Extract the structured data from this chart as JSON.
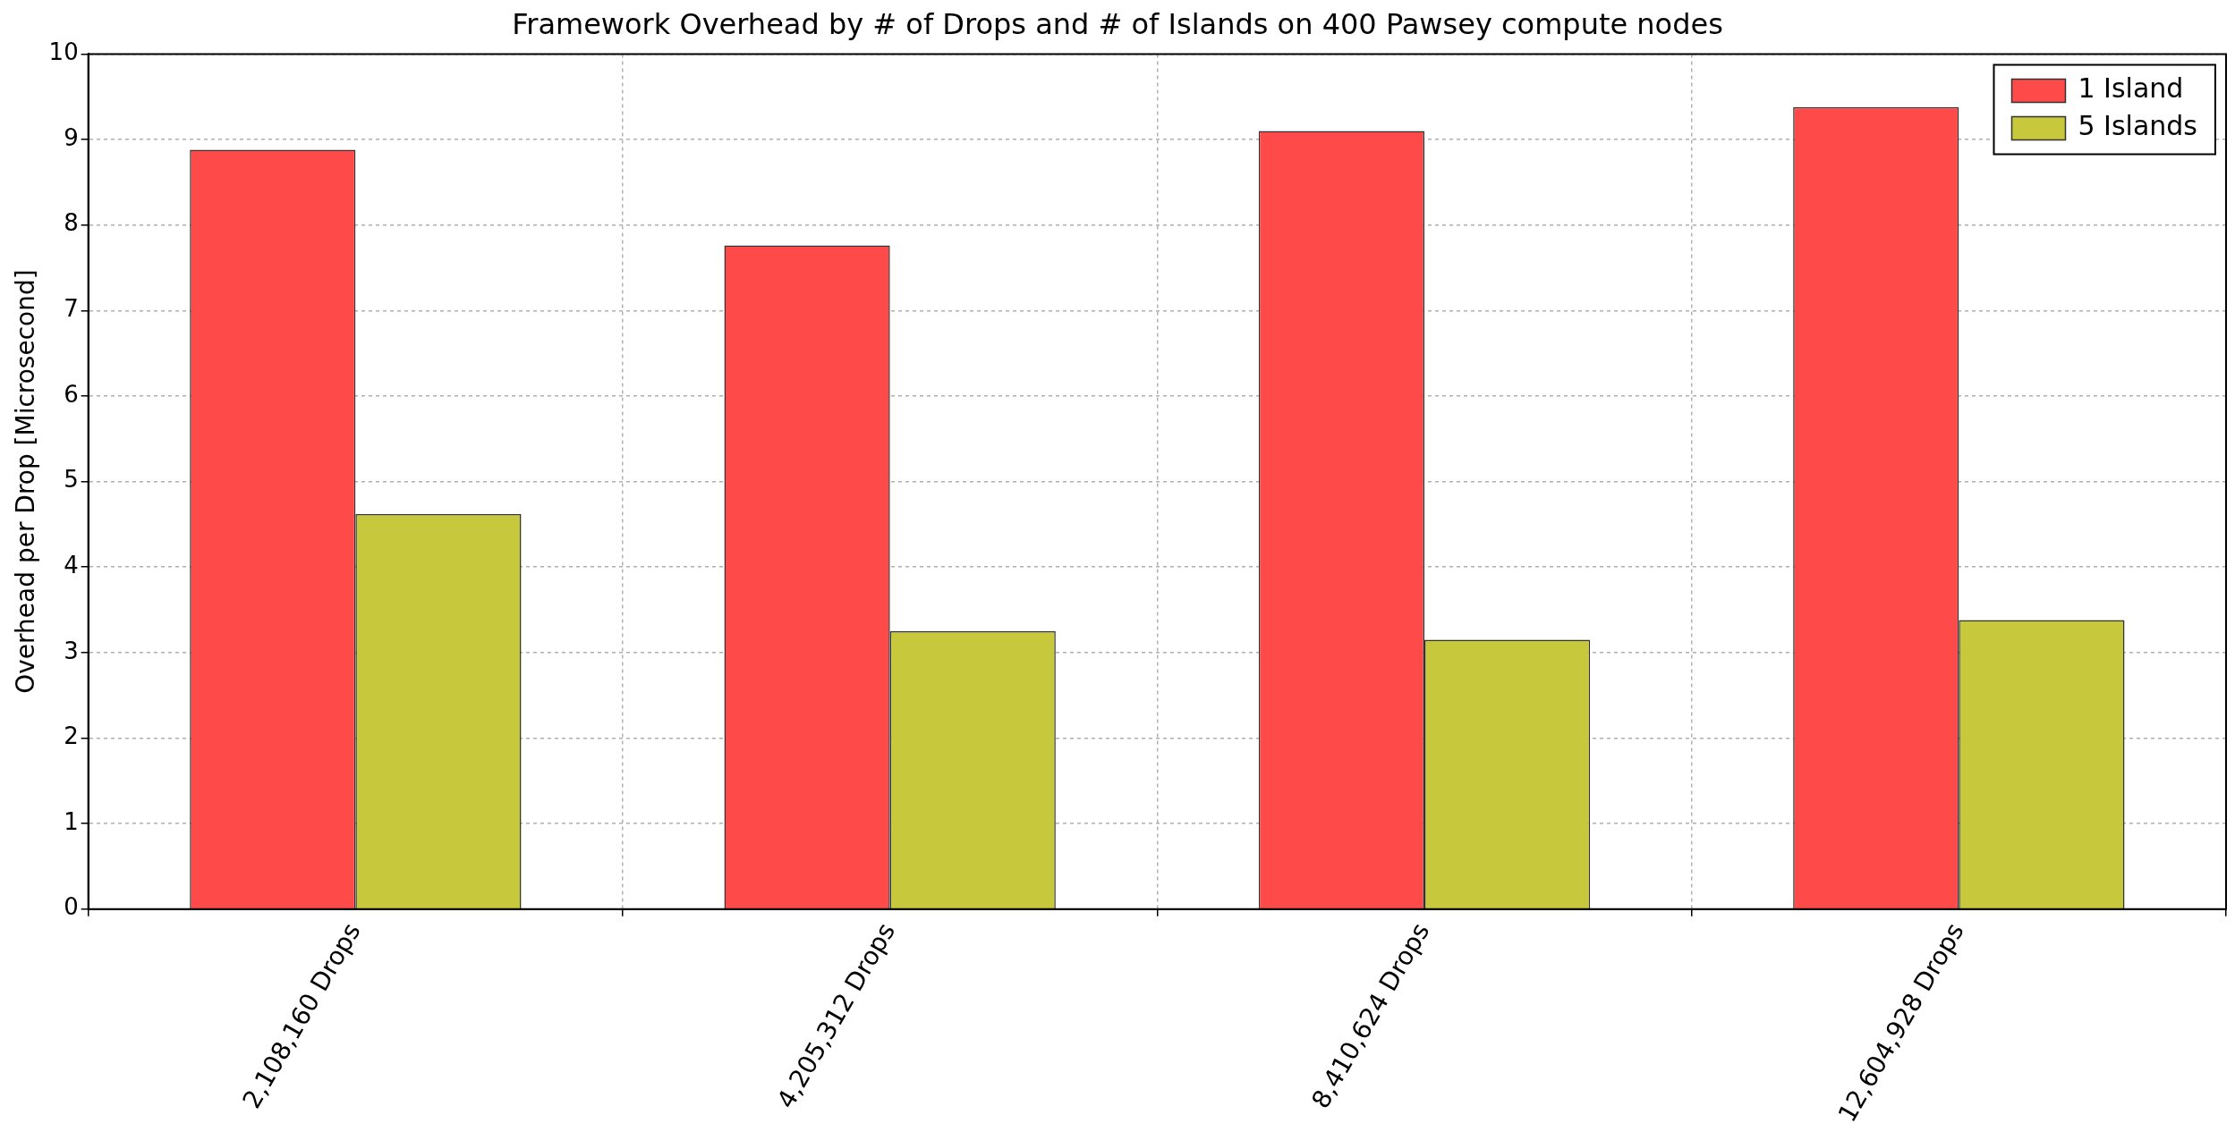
{
  "chart_data": {
    "type": "bar",
    "title": "Framework Overhead by # of Drops and # of Islands on 400 Pawsey compute nodes",
    "ylabel": "Overhead per Drop [Microsecond]",
    "categories": [
      "2,108,160 Drops",
      "4,205,312 Drops",
      "8,410,624 Drops",
      "12,604,928 Drops"
    ],
    "series": [
      {
        "name": "1 Island",
        "color": "#ff4a4a",
        "values": [
          8.88,
          7.76,
          9.1,
          9.38
        ]
      },
      {
        "name": "5 Islands",
        "color": "#c8c83c",
        "values": [
          4.62,
          3.25,
          3.15,
          3.38
        ]
      }
    ],
    "ylim": [
      0,
      10
    ],
    "yticks": [
      0,
      1,
      2,
      3,
      4,
      5,
      6,
      7,
      8,
      9,
      10
    ],
    "grid": true,
    "legend": "top right"
  }
}
